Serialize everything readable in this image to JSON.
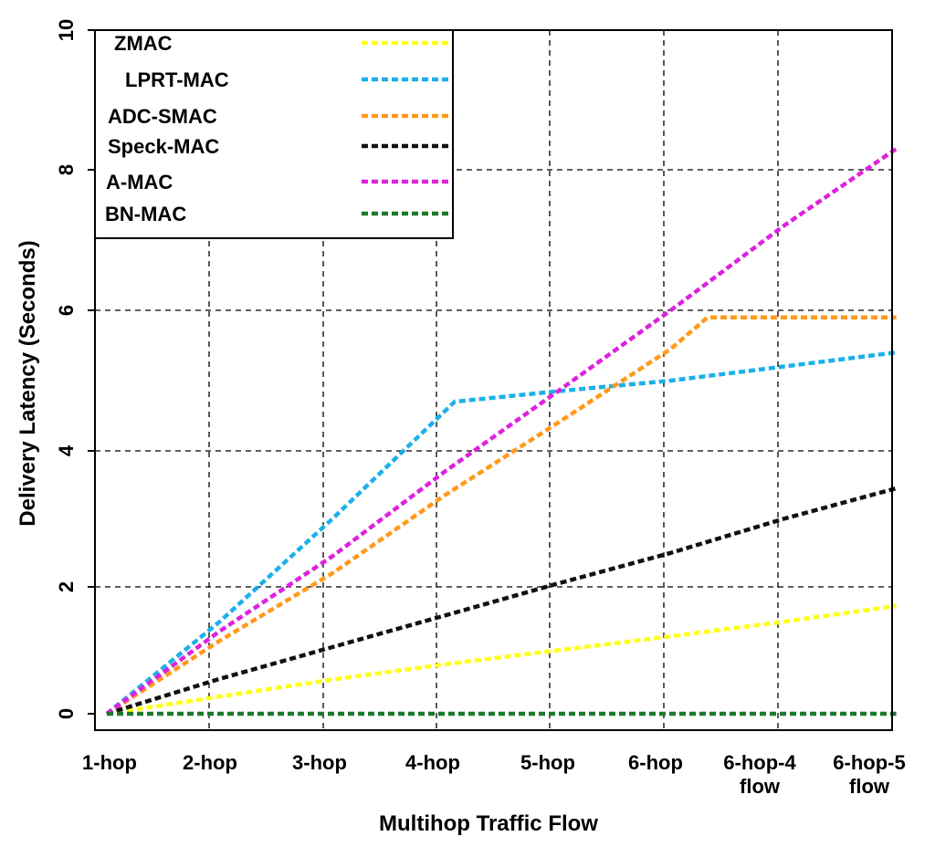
{
  "chart_data": {
    "type": "line",
    "xlabel": "Multihop Traffic Flow",
    "ylabel": "Delivery Latency (Seconds)",
    "categories": [
      [
        "1-hop"
      ],
      [
        "2-hop"
      ],
      [
        "3-hop"
      ],
      [
        "4-hop"
      ],
      [
        "5-hop"
      ],
      [
        "6-hop"
      ],
      [
        "6-hop-4",
        "flow"
      ],
      [
        "6-hop-5",
        "flow"
      ]
    ],
    "yticks": [
      "0",
      "2",
      "4",
      "6",
      "8",
      "10"
    ],
    "ylim": [
      0,
      10
    ],
    "grid": true,
    "legend_position": "top-left",
    "series": [
      {
        "name": "ZMAC",
        "color": "#ffff1a",
        "values": [
          0,
          0.27,
          0.54,
          0.78,
          1.0,
          1.22,
          1.45,
          1.7
        ]
      },
      {
        "name": "LPRT-MAC",
        "color": "#1cb0ea",
        "values": [
          0,
          1.45,
          3.0,
          4.7,
          4.85,
          5.0,
          5.2,
          5.4
        ]
      },
      {
        "name": "ADC-SMAC",
        "color": "#ff9a1a",
        "values": [
          0,
          1.15,
          2.2,
          3.35,
          4.4,
          5.45,
          5.9,
          5.9
        ]
      },
      {
        "name": "Speck-MAC",
        "color": "#111111",
        "values": [
          0,
          0.55,
          1.05,
          1.55,
          2.05,
          2.5,
          3.0,
          3.45
        ]
      },
      {
        "name": "A-MAC",
        "color": "#dd22dd",
        "values": [
          0,
          1.3,
          2.45,
          3.7,
          4.85,
          6.0,
          7.2,
          8.3
        ]
      },
      {
        "name": "BN-MAC",
        "color": "#1a7a2a",
        "values": [
          0,
          0,
          0,
          0,
          0,
          0,
          0,
          0
        ]
      }
    ]
  }
}
